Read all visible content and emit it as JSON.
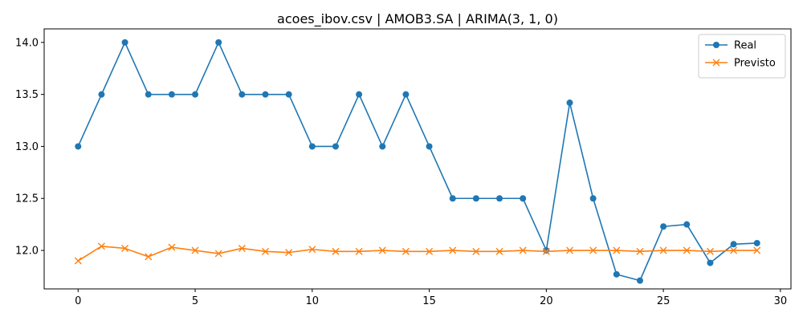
{
  "chart_data": {
    "type": "line",
    "title": "acoes_ibov.csv | AMOB3.SA | ARIMA(3, 1, 0)",
    "xlabel": "",
    "ylabel": "",
    "xlim": [
      -1.45,
      30.45
    ],
    "ylim": [
      11.63,
      14.13
    ],
    "xticks": [
      0,
      5,
      10,
      15,
      20,
      25,
      30
    ],
    "yticks": [
      12.0,
      12.5,
      13.0,
      13.5,
      14.0
    ],
    "ytick_labels": [
      "12.0",
      "12.5",
      "13.0",
      "13.5",
      "14.0"
    ],
    "grid": false,
    "legend_position": "top-right",
    "x": [
      0,
      1,
      2,
      3,
      4,
      5,
      6,
      7,
      8,
      9,
      10,
      11,
      12,
      13,
      14,
      15,
      16,
      17,
      18,
      19,
      20,
      21,
      22,
      23,
      24,
      25,
      26,
      27,
      28,
      29
    ],
    "series": [
      {
        "name": "Real",
        "color": "#1f77b4",
        "marker": "circle",
        "values": [
          13.0,
          13.5,
          14.0,
          13.5,
          13.5,
          13.5,
          14.0,
          13.5,
          13.5,
          13.5,
          13.0,
          13.0,
          13.5,
          13.0,
          13.5,
          13.0,
          12.5,
          12.5,
          12.5,
          12.5,
          12.0,
          13.42,
          12.5,
          11.77,
          11.71,
          12.23,
          12.25,
          11.88,
          12.06,
          12.07
        ]
      },
      {
        "name": "Previsto",
        "color": "#ff7f0e",
        "marker": "x",
        "values": [
          11.9,
          12.04,
          12.02,
          11.94,
          12.03,
          12.0,
          11.97,
          12.02,
          11.99,
          11.98,
          12.01,
          11.99,
          11.99,
          12.0,
          11.99,
          11.99,
          12.0,
          11.99,
          11.99,
          12.0,
          11.99,
          12.0,
          12.0,
          12.0,
          11.99,
          12.0,
          12.0,
          11.99,
          12.0,
          12.0
        ]
      }
    ]
  }
}
